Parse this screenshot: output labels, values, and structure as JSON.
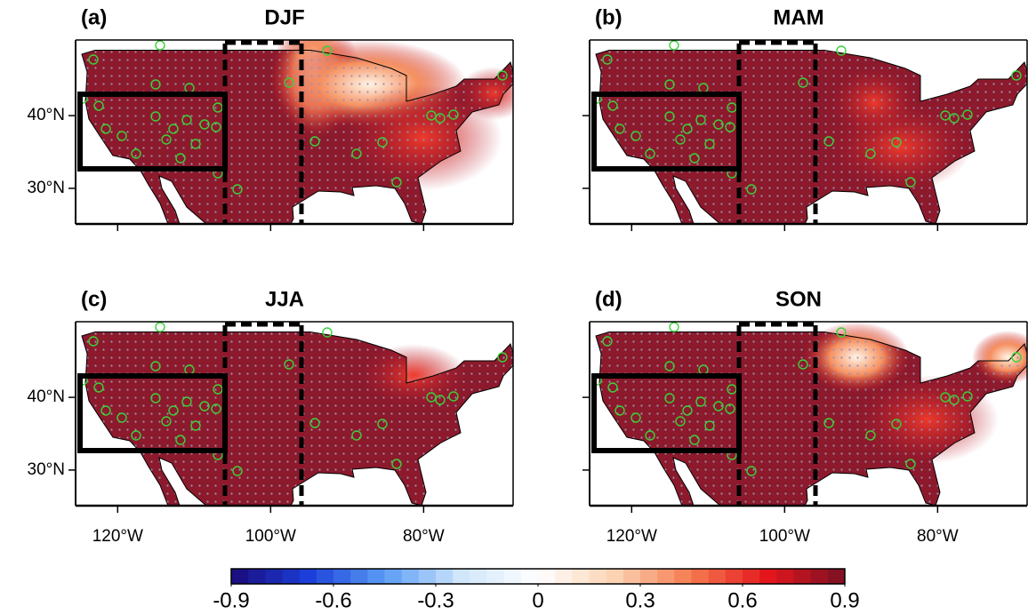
{
  "panels": [
    {
      "label": "(a)",
      "title": "DJF"
    },
    {
      "label": "(b)",
      "title": "MAM"
    },
    {
      "label": "(c)",
      "title": "JJA"
    },
    {
      "label": "(d)",
      "title": "SON"
    }
  ],
  "xlim": [
    -125.5,
    -68.3
  ],
  "ylim": [
    25.1,
    50.4
  ],
  "lon_ticks": [
    {
      "value": -120,
      "label": "120°W"
    },
    {
      "value": -100,
      "label": "100°W"
    },
    {
      "value": -80,
      "label": "80°W"
    }
  ],
  "lat_ticks": [
    {
      "value": 40,
      "label": "40°N"
    },
    {
      "value": 30,
      "label": "30°N"
    }
  ],
  "colorbar": {
    "lim": [
      -0.9,
      0.9
    ],
    "ticks": [
      -0.9,
      -0.6,
      -0.3,
      0,
      0.3,
      0.6,
      0.9
    ],
    "colors": [
      "#1a0a7a",
      "#1b3fd8",
      "#5a9cf5",
      "#cfe6fb",
      "#ffffff",
      "#fbd3b3",
      "#f57a50",
      "#e3161c",
      "#7a1024"
    ]
  }
}
